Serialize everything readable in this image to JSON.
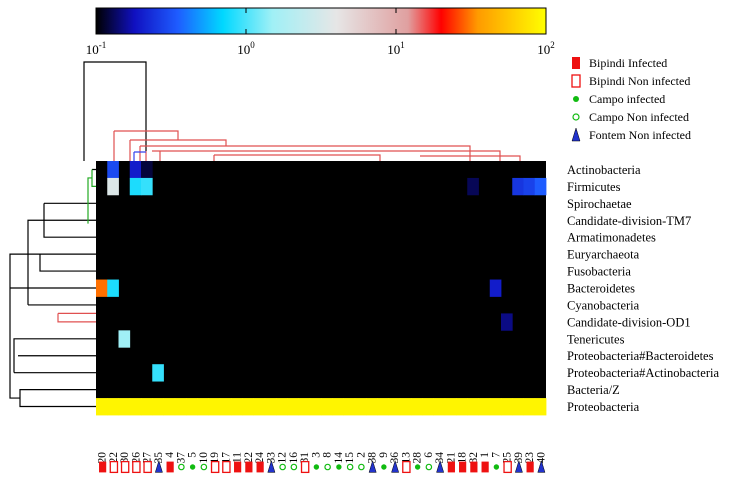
{
  "colors": {
    "background": "#000000",
    "proteobacteria": "#ffff2a",
    "dendrogram_black": "#000000",
    "dendrogram_red": "#e05050",
    "dendrogram_green": "#22aa22",
    "marker_red": "#ee1111",
    "marker_green": "#11bb11",
    "marker_blue": "#2233cc"
  },
  "chart_data": {
    "type": "heatmap",
    "title": "",
    "colorbar": {
      "scale": "log",
      "range": [
        0.1,
        100
      ],
      "tick_values": [
        0.1,
        1,
        10,
        100
      ],
      "tick_labels": [
        {
          "base": "10",
          "exp": "-1"
        },
        {
          "base": "10",
          "exp": "0"
        },
        {
          "base": "10",
          "exp": "1"
        },
        {
          "base": "10",
          "exp": "2"
        }
      ],
      "stops": [
        {
          "v": 0.1,
          "color": "#000000"
        },
        {
          "v": 0.18,
          "color": "#1010c0"
        },
        {
          "v": 0.35,
          "color": "#1e5cff"
        },
        {
          "v": 0.7,
          "color": "#00d8ff"
        },
        {
          "v": 1.5,
          "color": "#a0f0f6"
        },
        {
          "v": 4.0,
          "color": "#e6e6e6"
        },
        {
          "v": 12.0,
          "color": "#e0a0a0"
        },
        {
          "v": 20.0,
          "color": "#ff0000"
        },
        {
          "v": 35.0,
          "color": "#ff9a00"
        },
        {
          "v": 100.0,
          "color": "#ffff00"
        }
      ]
    },
    "samples": [
      "20",
      "22",
      "30",
      "26",
      "27",
      "35",
      "4",
      "37",
      "5",
      "10",
      "19",
      "17",
      "11",
      "22",
      "24",
      "33",
      "12",
      "16",
      "31",
      "3",
      "8",
      "14",
      "15",
      "2",
      "38",
      "9",
      "36",
      "13",
      "28",
      "6",
      "34",
      "21",
      "18",
      "32",
      "1",
      "7",
      "25",
      "39",
      "23",
      "40"
    ],
    "sample_groups": [
      "BI",
      "BN",
      "BN",
      "BN",
      "BN",
      "FN",
      "BI",
      "CN",
      "CI",
      "CN",
      "BN",
      "BN",
      "BI",
      "BI",
      "BI",
      "FN",
      "CN",
      "CN",
      "BN",
      "CI",
      "CN",
      "CI",
      "CN",
      "CN",
      "FN",
      "CI",
      "FN",
      "BN",
      "CI",
      "CN",
      "FN",
      "BI",
      "BI",
      "BI",
      "BI",
      "CI",
      "BN",
      "FN",
      "BI",
      "FN"
    ],
    "taxa": [
      "Actinobacteria",
      "Firmicutes",
      "Spirochaetae",
      "Candidate-division-TM7",
      "Armatimonadetes",
      "Euryarchaeota",
      "Fusobacteria",
      "Bacteroidetes",
      "Cyanobacteria",
      "Candidate-division-OD1",
      "Tenericutes",
      "Proteobacteria#Bacteroidetes",
      "Proteobacteria#Actinobacteria",
      "Bacteria/Z",
      "Proteobacteria"
    ],
    "default_value": 0.1,
    "row_default": {
      "Proteobacteria": 90
    },
    "cells": [
      {
        "row": 0,
        "col": 1,
        "value": 0.3
      },
      {
        "row": 0,
        "col": 3,
        "value": 0.2
      },
      {
        "row": 0,
        "col": 4,
        "value": 0.12
      },
      {
        "row": 1,
        "col": 1,
        "value": 3.5
      },
      {
        "row": 1,
        "col": 3,
        "value": 0.8
      },
      {
        "row": 1,
        "col": 4,
        "value": 0.9
      },
      {
        "row": 1,
        "col": 33,
        "value": 0.13
      },
      {
        "row": 1,
        "col": 37,
        "value": 0.25
      },
      {
        "row": 1,
        "col": 38,
        "value": 0.28
      },
      {
        "row": 1,
        "col": 39,
        "value": 0.35
      },
      {
        "row": 7,
        "col": 0,
        "value": 30
      },
      {
        "row": 7,
        "col": 1,
        "value": 0.8
      },
      {
        "row": 7,
        "col": 35,
        "value": 0.2
      },
      {
        "row": 9,
        "col": 36,
        "value": 0.15
      },
      {
        "row": 10,
        "col": 2,
        "value": 1.5
      },
      {
        "row": 12,
        "col": 5,
        "value": 0.9
      }
    ],
    "legend": [
      {
        "label": "Bipindi Infected",
        "code": "BI",
        "marker": "filled-square",
        "color": "#ee1111"
      },
      {
        "label": "Bipindi Non infected",
        "code": "BN",
        "marker": "open-square",
        "color": "#ee1111"
      },
      {
        "label": "Campo infected",
        "code": "CI",
        "marker": "filled-circle",
        "color": "#11bb11"
      },
      {
        "label": "Campo Non infected",
        "code": "CN",
        "marker": "open-circle",
        "color": "#11bb11"
      },
      {
        "label": "Fontem Non infected",
        "code": "FN",
        "marker": "filled-triangle",
        "color": "#2233cc"
      }
    ],
    "legend_placement": "top-right",
    "grid": false
  }
}
